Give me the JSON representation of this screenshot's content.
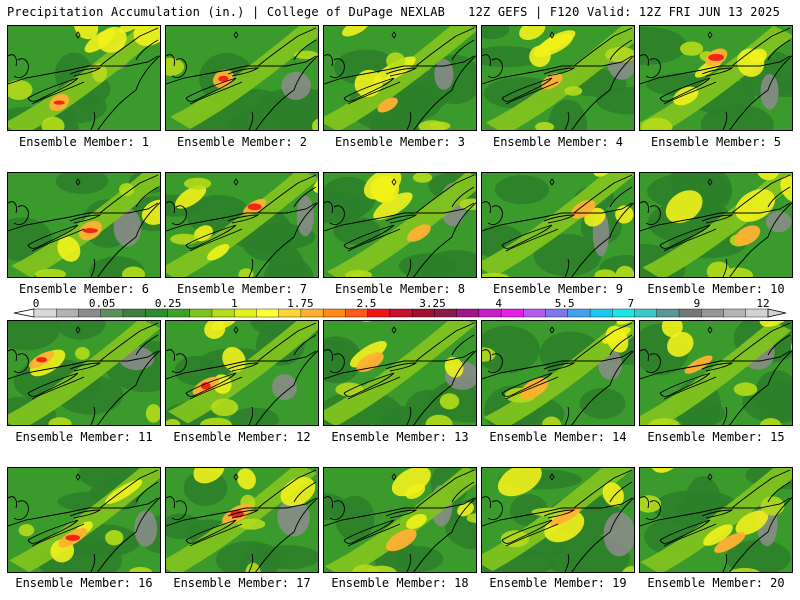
{
  "header": {
    "left": "Precipitation Accumulation (in.) | College of DuPage NEXLAB",
    "right": "12Z GEFS | F120 Valid: 12Z FRI JUN 13 2025"
  },
  "caption_prefix": "Ensemble Member: ",
  "members": [
    {
      "id": 1,
      "label": "Ensemble Member: 1"
    },
    {
      "id": 2,
      "label": "Ensemble Member: 2"
    },
    {
      "id": 3,
      "label": "Ensemble Member: 3"
    },
    {
      "id": 4,
      "label": "Ensemble Member: 4"
    },
    {
      "id": 5,
      "label": "Ensemble Member: 5"
    },
    {
      "id": 6,
      "label": "Ensemble Member: 6"
    },
    {
      "id": 7,
      "label": "Ensemble Member: 7"
    },
    {
      "id": 8,
      "label": "Ensemble Member: 8"
    },
    {
      "id": 9,
      "label": "Ensemble Member: 9"
    },
    {
      "id": 10,
      "label": "Ensemble Member: 10"
    },
    {
      "id": 11,
      "label": "Ensemble Member: 11"
    },
    {
      "id": 12,
      "label": "Ensemble Member: 12"
    },
    {
      "id": 13,
      "label": "Ensemble Member: 13"
    },
    {
      "id": 14,
      "label": "Ensemble Member: 14"
    },
    {
      "id": 15,
      "label": "Ensemble Member: 15"
    },
    {
      "id": 16,
      "label": "Ensemble Member: 16"
    },
    {
      "id": 17,
      "label": "Ensemble Member: 17"
    },
    {
      "id": 18,
      "label": "Ensemble Member: 18"
    },
    {
      "id": 19,
      "label": "Ensemble Member: 19"
    },
    {
      "id": 20,
      "label": "Ensemble Member: 20"
    }
  ],
  "colorbar": {
    "labels": [
      "0",
      "0.05",
      "0.25",
      "1",
      "1.75",
      "2.5",
      "3.25",
      "4",
      "5.5",
      "7",
      "9",
      "12"
    ],
    "colors": [
      "#d9d9d9",
      "#b3b3b3",
      "#8c8c8c",
      "#5f8f5f",
      "#3f7f3f",
      "#2e8b2e",
      "#3fa32a",
      "#7fc31f",
      "#b5dc1a",
      "#e6f21c",
      "#ffff33",
      "#ffd633",
      "#ffb033",
      "#ff8a1a",
      "#ff5a1a",
      "#f01616",
      "#c8102e",
      "#a0102e",
      "#8b1a4a",
      "#a0148c",
      "#c81ec8",
      "#e61ee6",
      "#b45af0",
      "#7d78f0",
      "#46a0f0",
      "#1ec8f0",
      "#1ee6e6",
      "#3cc8c8",
      "#5a9696",
      "#787878",
      "#969696",
      "#b4b4b4",
      "#d2d2d2"
    ]
  },
  "shading_colors": {
    "land_base": "#3b9a2c",
    "dark_green": "#2e7f2a",
    "light_green": "#7fc31f",
    "yellow_green": "#b5dc1a",
    "yellow": "#f2f21c",
    "orange": "#ffb033",
    "red": "#f01616",
    "gray": "#8c8c8c"
  }
}
